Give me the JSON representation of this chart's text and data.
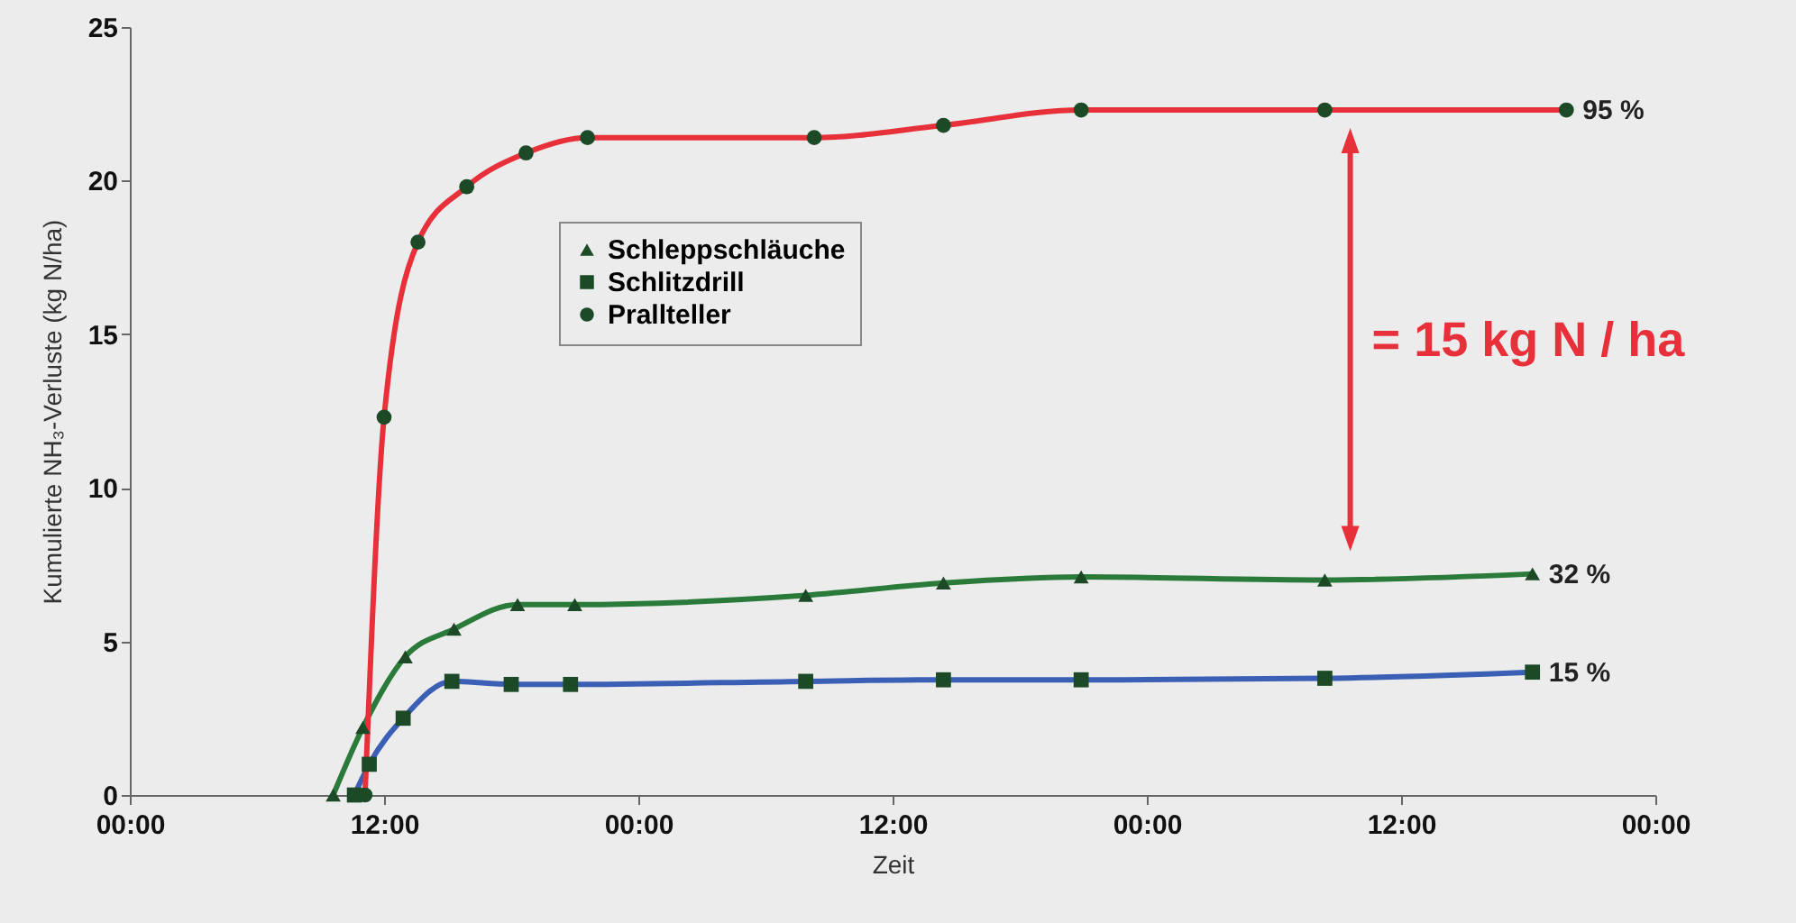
{
  "chart_data": {
    "type": "line",
    "xlabel": "Zeit",
    "ylabel": "Kumulierte NH₃-Verluste (kg N/ha)",
    "xlim": [
      "2000-01-01T00:00",
      "2000-01-04T00:00"
    ],
    "xticks": [
      {
        "value": "2000-01-01T00:00",
        "label": "00:00"
      },
      {
        "value": "2000-01-01T12:00",
        "label": "12:00"
      },
      {
        "value": "2000-01-02T00:00",
        "label": "00:00"
      },
      {
        "value": "2000-01-02T12:00",
        "label": "12:00"
      },
      {
        "value": "2000-01-03T00:00",
        "label": "00:00"
      },
      {
        "value": "2000-01-03T12:00",
        "label": "12:00"
      },
      {
        "value": "2000-01-04T00:00",
        "label": "00:00"
      }
    ],
    "ylim": [
      0,
      25
    ],
    "yticks": [
      0,
      5,
      10,
      15,
      20,
      25
    ],
    "grid": false,
    "legend": "top left",
    "series": [
      {
        "name": "Schleppschläuche",
        "color": "#2a7a3a",
        "marker": "triangle",
        "x": [
          "2000-01-01T09:36",
          "2000-01-01T11:00",
          "2000-01-01T13:00",
          "2000-01-01T15:18",
          "2000-01-01T18:18",
          "2000-01-01T21:00",
          "2000-01-02T07:54",
          "2000-01-02T14:24",
          "2000-01-02T20:54",
          "2000-01-03T08:24",
          "2000-01-03T18:12"
        ],
        "values": [
          0,
          2.2,
          4.5,
          5.4,
          6.2,
          6.2,
          6.5,
          6.9,
          7.1,
          7.0,
          7.2
        ]
      },
      {
        "name": "Schlitzdrill",
        "color": "#3a5fb5",
        "marker": "square",
        "x": [
          "2000-01-01T10:36",
          "2000-01-01T11:18",
          "2000-01-01T12:54",
          "2000-01-01T15:12",
          "2000-01-01T18:00",
          "2000-01-01T20:48",
          "2000-01-02T07:54",
          "2000-01-02T14:24",
          "2000-01-02T20:54",
          "2000-01-03T08:24",
          "2000-01-03T18:12"
        ],
        "values": [
          0,
          1.0,
          2.5,
          3.7,
          3.6,
          3.6,
          3.7,
          3.75,
          3.75,
          3.8,
          4.0
        ]
      },
      {
        "name": "Prallteller",
        "color": "#e8303a",
        "marker": "circle",
        "x": [
          "2000-01-01T11:06",
          "2000-01-01T12:00",
          "2000-01-01T13:36",
          "2000-01-01T15:54",
          "2000-01-01T18:42",
          "2000-01-01T21:36",
          "2000-01-02T08:18",
          "2000-01-02T14:24",
          "2000-01-02T20:54",
          "2000-01-03T08:24",
          "2000-01-03T19:48"
        ],
        "values": [
          0,
          12.3,
          18.0,
          19.8,
          20.9,
          21.4,
          21.4,
          21.8,
          22.3,
          22.3,
          22.3
        ]
      }
    ],
    "annotations": [
      "= 15 kg N / ha",
      {
        "text": "95 %",
        "x": "2000-01-03T19:48",
        "y": 22.3
      },
      {
        "text": "32 %",
        "x": "2000-01-03T18:12",
        "y": 7.2
      },
      {
        "text": "15 %",
        "x": "2000-01-03T18:12",
        "y": 4.0
      }
    ]
  }
}
